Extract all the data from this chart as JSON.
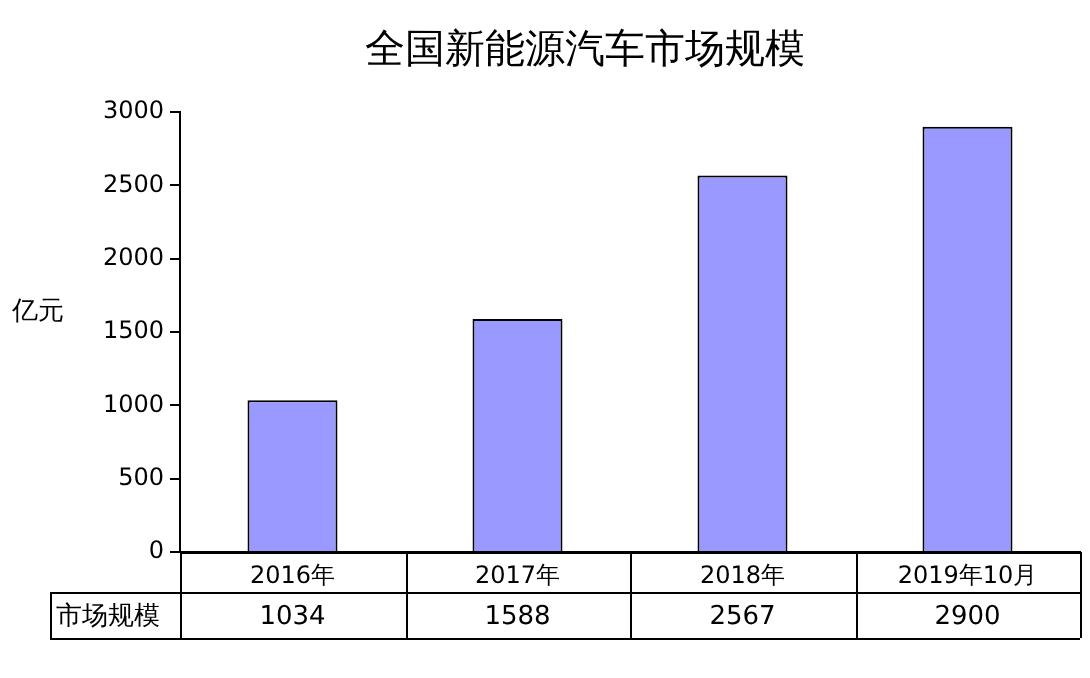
{
  "chart_data": {
    "type": "bar",
    "title": "全国新能源汽车市场规模",
    "ylabel": "亿元",
    "categories": [
      "2016年",
      "2017年",
      "2018年",
      "2019年10月"
    ],
    "series": [
      {
        "name": "市场规模",
        "color": "#9999ff",
        "values": [
          1034,
          1588,
          2567,
          2900
        ]
      }
    ],
    "data_labels": true,
    "ylim": [
      0,
      3000
    ],
    "yticks": [
      0,
      500,
      1000,
      1500,
      2000,
      2500,
      3000
    ],
    "grid": false
  }
}
